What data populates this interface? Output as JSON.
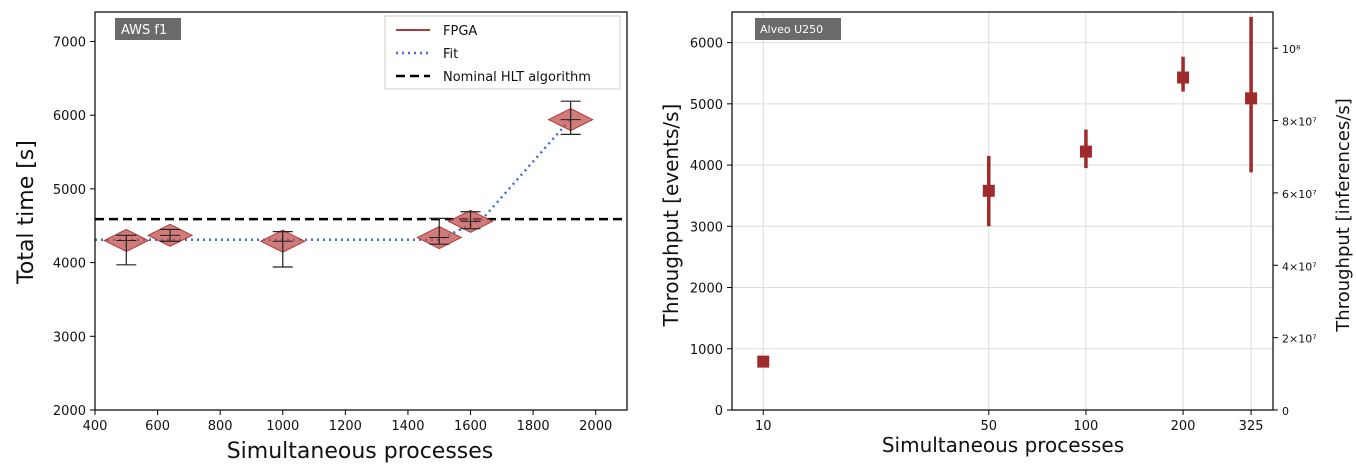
{
  "chart_data": [
    {
      "type": "scatter",
      "badge": "AWS f1",
      "xlabel": "Simultaneous processes",
      "ylabel": "Total time [s]",
      "xlim": [
        400,
        2100
      ],
      "ylim": [
        2000,
        7400
      ],
      "xticks": [
        400,
        600,
        800,
        1000,
        1200,
        1400,
        1600,
        1800,
        2000
      ],
      "yticks": [
        2000,
        3000,
        4000,
        5000,
        6000,
        7000
      ],
      "grid": false,
      "legend_position": "top-right",
      "legend": [
        {
          "label": "FPGA",
          "style": "solid",
          "color": "#b03a3a"
        },
        {
          "label": "Fit",
          "style": "dotted",
          "color": "#4169e1"
        },
        {
          "label": "Nominal HLT algorithm",
          "style": "dashed",
          "color": "#000000"
        }
      ],
      "fpga": [
        {
          "x": 500,
          "y": 4300,
          "low": 3970,
          "high": 4370
        },
        {
          "x": 640,
          "y": 4370,
          "low": 4290,
          "high": 4450
        },
        {
          "x": 1000,
          "y": 4290,
          "low": 3940,
          "high": 4420
        },
        {
          "x": 1500,
          "y": 4340,
          "low": 4250,
          "high": 4600
        },
        {
          "x": 1600,
          "y": 4560,
          "low": 4460,
          "high": 4690
        },
        {
          "x": 1920,
          "y": 5940,
          "low": 5740,
          "high": 6190
        }
      ],
      "fit": {
        "x": [
          400,
          1500,
          1640,
          1920
        ],
        "y": [
          4310,
          4310,
          4600,
          5950
        ]
      },
      "nominal": 4590,
      "colors": {
        "fpga": "#b03a3a",
        "fpga_fill": "#c0504d",
        "fit": "#4169e1",
        "nominal": "#000000",
        "badge": "#6b6b6b"
      }
    },
    {
      "type": "scatter",
      "badge": "Alveo U250",
      "xlabel": "Simultaneous processes",
      "ylabel": "Throughput [events/s]",
      "ylabel_right": "Throughput [inferences/s]",
      "x_scale": "log",
      "xlim": [
        8,
        380
      ],
      "ylim": [
        0,
        6500
      ],
      "xticks": [
        10,
        50,
        100,
        200,
        325
      ],
      "yticks": [
        0,
        1000,
        2000,
        3000,
        4000,
        5000,
        6000
      ],
      "yticks_right": [
        {
          "value": 0,
          "label": "0"
        },
        {
          "value": 20000000,
          "label": "2×10⁷"
        },
        {
          "value": 40000000,
          "label": "4×10⁷"
        },
        {
          "value": 60000000,
          "label": "6×10⁷"
        },
        {
          "value": 80000000,
          "label": "8×10⁷"
        },
        {
          "value": 100000000,
          "label": "10⁸"
        }
      ],
      "ylim_right": [
        0,
        110000000
      ],
      "grid": true,
      "points": [
        {
          "x": 10,
          "y": 790,
          "low": 790,
          "high": 790
        },
        {
          "x": 50,
          "y": 3580,
          "low": 3000,
          "high": 4150
        },
        {
          "x": 100,
          "y": 4220,
          "low": 3950,
          "high": 4580
        },
        {
          "x": 200,
          "y": 5430,
          "low": 5200,
          "high": 5770
        },
        {
          "x": 325,
          "y": 5090,
          "low": 3880,
          "high": 6420
        }
      ],
      "colors": {
        "marker": "#9e2a2b",
        "badge": "#6b6b6b",
        "grid": "#dddddd"
      }
    }
  ]
}
